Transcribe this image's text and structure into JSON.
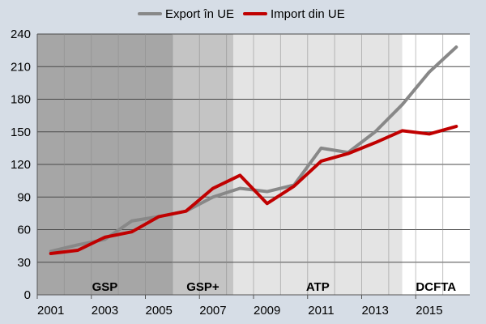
{
  "chart_data": {
    "type": "line",
    "title": "",
    "xlabel": "",
    "ylabel": "",
    "ylim": [
      0,
      240
    ],
    "yticks": [
      0,
      30,
      60,
      90,
      120,
      150,
      180,
      210,
      240
    ],
    "xlim": [
      2000.5,
      2016.5
    ],
    "xticks": [
      2001,
      2003,
      2005,
      2007,
      2009,
      2011,
      2013,
      2015
    ],
    "grid": true,
    "legend": "top-center",
    "x": [
      2001,
      2002,
      2003,
      2004,
      2005,
      2006,
      2007,
      2008,
      2009,
      2010,
      2011,
      2012,
      2013,
      2014,
      2015,
      2016
    ],
    "series": [
      {
        "name": "Export în UE",
        "color": "#888888",
        "values": [
          40,
          46,
          51,
          68,
          72,
          77,
          90,
          98,
          95,
          101,
          135,
          131,
          150,
          175,
          205,
          228
        ]
      },
      {
        "name": "Import din UE",
        "color": "#c00000",
        "values": [
          38,
          41,
          53,
          58,
          72,
          77,
          98,
          110,
          84,
          100,
          123,
          130,
          140,
          151,
          148,
          155
        ]
      }
    ],
    "periods": [
      {
        "label": "GSP",
        "start": 2000.5,
        "end": 2005.5,
        "color": "#a6a6a6"
      },
      {
        "label": "GSP+",
        "start": 2005.5,
        "end": 2007.75,
        "color": "#c4c4c4"
      },
      {
        "label": "ATP",
        "start": 2007.75,
        "end": 2014.0,
        "color": "#e4e4e4"
      },
      {
        "label": "DCFTA",
        "start": 2014.0,
        "end": 2016.5,
        "color": "#ffffff"
      }
    ]
  }
}
